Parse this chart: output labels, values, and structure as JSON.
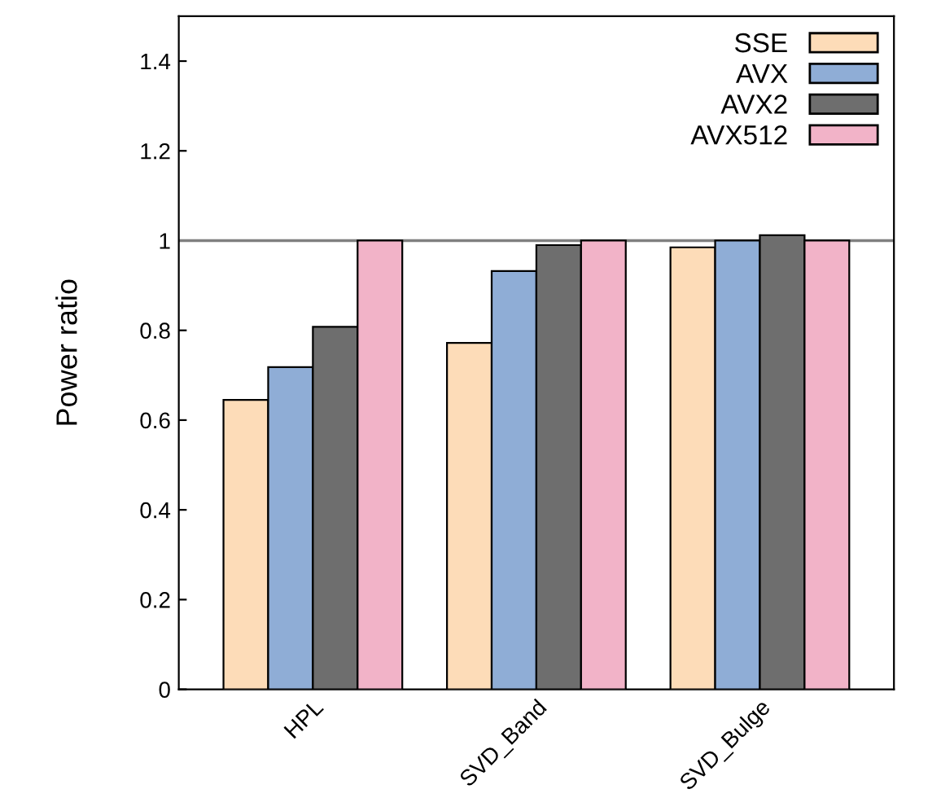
{
  "chart_data": {
    "type": "bar",
    "ylabel": "Power ratio",
    "categories": [
      "HPL",
      "SVD_Band",
      "SVD_Bulge"
    ],
    "series": [
      {
        "name": "SSE",
        "color": "#fddcb8",
        "values": [
          0.645,
          0.772,
          0.985
        ]
      },
      {
        "name": "AVX",
        "color": "#8fadd6",
        "values": [
          0.718,
          0.932,
          1.0
        ]
      },
      {
        "name": "AVX2",
        "color": "#6e6e6e",
        "values": [
          0.808,
          0.99,
          1.012
        ]
      },
      {
        "name": "AVX512",
        "color": "#f2b3c8",
        "values": [
          1.0,
          1.0,
          1.0
        ]
      }
    ],
    "ylim": [
      0,
      1.5
    ],
    "yticks": [
      0,
      0.2,
      0.4,
      0.6,
      0.8,
      1,
      1.2,
      1.4
    ],
    "ref_lines": [
      {
        "axis": "y",
        "value": 1,
        "color": "#808080"
      }
    ],
    "legend": "top right",
    "grid": false
  }
}
